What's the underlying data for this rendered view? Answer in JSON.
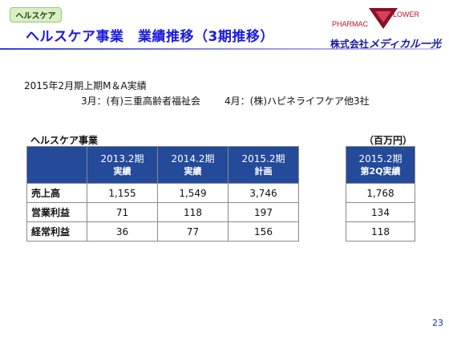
{
  "header": {
    "section_tag": "ヘルスケア",
    "title": "ヘルスケア事業　業績推移（3期推移）",
    "brand": {
      "logo_left": "PHARMAC",
      "logo_right": "LOWER",
      "company_prefix": "株式会社",
      "company_name": "メディカル一光",
      "colors": {
        "logo_text": "#c0102a",
        "logo_mark": "#8a1020",
        "company": "#1a1aa0",
        "title": "#1a1ae0"
      }
    }
  },
  "ma": {
    "heading": "2015年2月期上期M＆A実績",
    "march": "3月：(有)三重高齢者福祉会",
    "april": "4月：(株)ハピネライフケア他3社"
  },
  "table": {
    "caption": "ヘルスケア事業",
    "unit": "（百万円）",
    "header_color": "#244a9a",
    "columns": [
      {
        "line1": "2013.2期",
        "line2": "実績"
      },
      {
        "line1": "2014.2期",
        "line2": "実績"
      },
      {
        "line1": "2015.2期",
        "line2": "計画"
      }
    ],
    "side_column": {
      "line1": "2015.2期",
      "line2": "第2Q実績"
    },
    "rows": [
      {
        "label": "売上高",
        "values": [
          "1,155",
          "1,549",
          "3,746"
        ],
        "side": "1,768"
      },
      {
        "label": "営業利益",
        "values": [
          "71",
          "118",
          "197"
        ],
        "side": "134"
      },
      {
        "label": "経常利益",
        "values": [
          "36",
          "77",
          "156"
        ],
        "side": "118"
      }
    ]
  },
  "page_number": "23"
}
